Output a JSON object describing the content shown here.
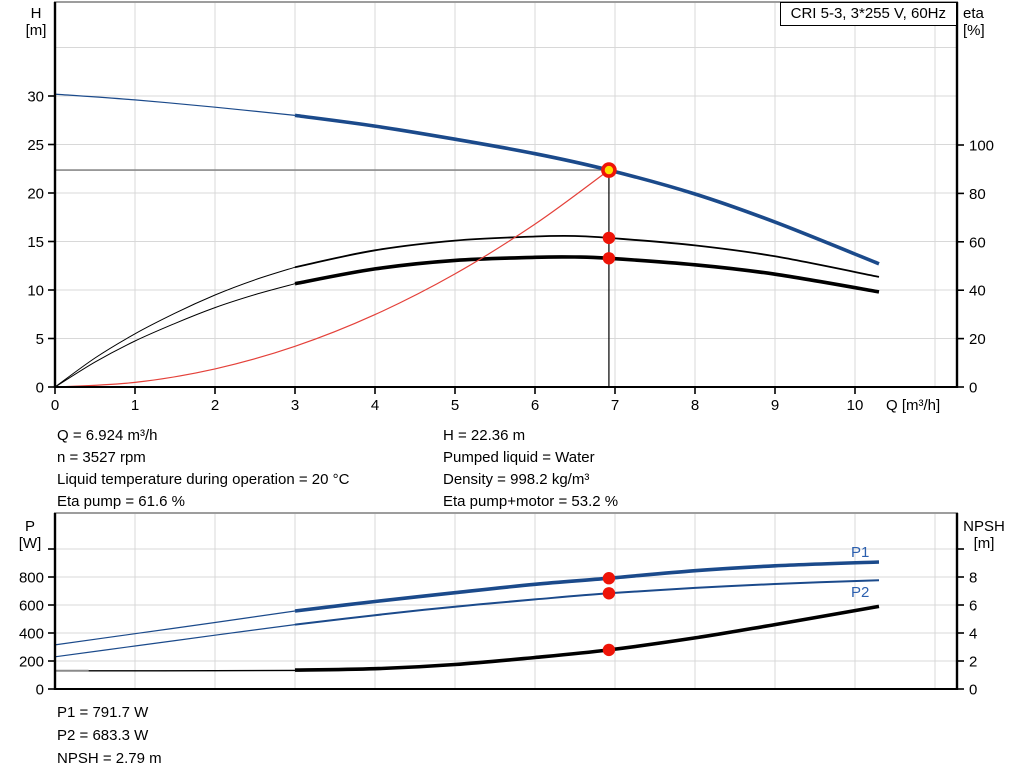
{
  "title_box": "CRI 5-3, 3*255 V, 60Hz",
  "annotations": {
    "top_left": [
      "Q = 6.924 m³/h",
      "n = 3527 rpm",
      "Liquid temperature during operation = 20 °C",
      "Eta pump = 61.6 %"
    ],
    "top_right": [
      "H = 22.36 m",
      "Pumped liquid = Water",
      "Density = 998.2 kg/m³",
      "Eta pump+motor = 53.2 %"
    ],
    "bottom": [
      "P1 = 791.7 W",
      "P2 = 683.3 W",
      "NPSH = 2.79 m"
    ]
  },
  "colors": {
    "curve_blue": "#1b4a8b",
    "label_blue": "#2b5fae",
    "red_curve": "#e4413a",
    "red_dot": "#ee1408",
    "duty_yellow": "#ffdf00",
    "grid": "#d8d8d8",
    "border_gray": "#9d9d9d",
    "duty_guide_gray": "#8a8a8a",
    "black": "#000000"
  },
  "chart_data": [
    {
      "type": "line",
      "title": "CRI 5-3, 3*255 V, 60Hz",
      "x_axis": {
        "label": "Q [m³/h]",
        "ticks": [
          0,
          1,
          2,
          3,
          4,
          5,
          6,
          7,
          8,
          9,
          10
        ],
        "range": [
          0,
          11.28
        ],
        "grid": true
      },
      "y_left": {
        "label": [
          "H",
          "[m]"
        ],
        "ticks": [
          0,
          5,
          10,
          15,
          20,
          25,
          30
        ],
        "range": [
          0,
          39.7
        ]
      },
      "y_right": {
        "label": [
          "eta",
          "[%]"
        ],
        "ticks": [
          0,
          20,
          40,
          60,
          80,
          100
        ],
        "range": [
          0,
          159
        ]
      },
      "series": [
        {
          "name": "head-curve-extension",
          "axis": "left",
          "color": "blue",
          "width": 1.2,
          "points": [
            [
              0,
              30.2
            ],
            [
              1,
              29.6
            ],
            [
              2,
              28.85
            ],
            [
              3,
              28.0
            ]
          ]
        },
        {
          "name": "head-curve",
          "axis": "left",
          "color": "blue",
          "width": 3.6,
          "points": [
            [
              3,
              28.0
            ],
            [
              4,
              26.9
            ],
            [
              5,
              25.55
            ],
            [
              6,
              24.05
            ],
            [
              6.924,
              22.36
            ],
            [
              8,
              19.9
            ],
            [
              9,
              17.0
            ],
            [
              10.3,
              12.7
            ]
          ]
        },
        {
          "name": "eta-pump-curve-extension",
          "axis": "right",
          "color": "black",
          "width": 1,
          "points": [
            [
              0,
              0
            ],
            [
              0.5,
              12
            ],
            [
              1,
              22
            ],
            [
              1.5,
              30.5
            ],
            [
              2,
              38
            ],
            [
              2.5,
              44.3
            ],
            [
              3,
              49.5
            ]
          ]
        },
        {
          "name": "eta-pump-curve",
          "axis": "right",
          "color": "black",
          "width": 1.8,
          "points": [
            [
              3,
              49.5
            ],
            [
              4,
              56.5
            ],
            [
              5,
              60.5
            ],
            [
              6,
              62.2
            ],
            [
              6.5,
              62.4
            ],
            [
              6.924,
              61.6
            ],
            [
              8,
              58.5
            ],
            [
              9,
              54.0
            ],
            [
              10.3,
              45.5
            ]
          ]
        },
        {
          "name": "eta-pump-motor-curve-extension",
          "axis": "right",
          "color": "black",
          "width": 1,
          "points": [
            [
              0,
              0
            ],
            [
              0.5,
              10.3
            ],
            [
              1,
              19
            ],
            [
              1.5,
              26.3
            ],
            [
              2,
              32.8
            ],
            [
              2.5,
              38.2
            ],
            [
              3,
              42.7
            ]
          ]
        },
        {
          "name": "eta-pump-motor-curve",
          "axis": "right",
          "color": "black",
          "width": 3.6,
          "points": [
            [
              3,
              42.7
            ],
            [
              4,
              48.8
            ],
            [
              5,
              52.3
            ],
            [
              6,
              53.6
            ],
            [
              6.5,
              53.7
            ],
            [
              6.924,
              53.2
            ],
            [
              8,
              50.5
            ],
            [
              9,
              46.6
            ],
            [
              10.3,
              39.3
            ]
          ]
        },
        {
          "name": "system-curve",
          "axis": "left",
          "color": "red",
          "width": 1.2,
          "points": [
            [
              0,
              0
            ],
            [
              1,
              0.47
            ],
            [
              2,
              1.87
            ],
            [
              3,
              4.2
            ],
            [
              4,
              7.46
            ],
            [
              5,
              11.66
            ],
            [
              6,
              16.79
            ],
            [
              6.924,
              22.36
            ]
          ]
        }
      ],
      "duty_point": {
        "q": 6.924,
        "h": 22.36,
        "eta_pump": 61.6,
        "eta_pump_motor": 53.2
      },
      "guides": {
        "h_line": {
          "h": 22.36,
          "q_from": 0,
          "q_to": 6.924
        },
        "v_line": {
          "q": 6.924,
          "v_from": 0,
          "v_to": 22.36
        }
      },
      "markers": [
        {
          "name": "duty-point-marker",
          "axis": "left",
          "q": 6.924,
          "v": 22.36,
          "style": "ring"
        },
        {
          "name": "eta-pump-marker",
          "axis": "right",
          "q": 6.924,
          "v": 61.6,
          "style": "dot"
        },
        {
          "name": "eta-pump-motor-marker",
          "axis": "right",
          "q": 6.924,
          "v": 53.2,
          "style": "dot"
        }
      ]
    },
    {
      "type": "line",
      "title": "",
      "x_axis": {
        "label": "",
        "ticks": [],
        "range": [
          0,
          11.28
        ],
        "grid": true
      },
      "y_left": {
        "label": [
          "P",
          "[W]"
        ],
        "ticks": [
          0,
          200,
          400,
          600,
          800
        ],
        "range": [
          0,
          1257
        ]
      },
      "y_right": {
        "label": [
          "NPSH",
          "[m]"
        ],
        "ticks": [
          0,
          2,
          4,
          6,
          8
        ],
        "range": [
          0,
          12.6
        ]
      },
      "series": [
        {
          "name": "p1-curve-extension",
          "axis": "left",
          "color": "blue",
          "width": 1.2,
          "points": [
            [
              0,
              315
            ],
            [
              1,
              395
            ],
            [
              2,
              475
            ],
            [
              3,
              557
            ]
          ]
        },
        {
          "name": "p1-curve",
          "axis": "left",
          "color": "blue",
          "width": 3.6,
          "points": [
            [
              3,
              557
            ],
            [
              4,
              625
            ],
            [
              5,
              688
            ],
            [
              6,
              748
            ],
            [
              6.924,
              791.7
            ],
            [
              8,
              845
            ],
            [
              9,
              880
            ],
            [
              10.3,
              907
            ]
          ]
        },
        {
          "name": "p2-curve-extension",
          "axis": "left",
          "color": "blue",
          "width": 1.2,
          "points": [
            [
              0,
              230
            ],
            [
              1,
              307
            ],
            [
              2,
              384
            ],
            [
              3,
              460
            ]
          ]
        },
        {
          "name": "p2-curve",
          "axis": "left",
          "color": "blue",
          "width": 2,
          "points": [
            [
              3,
              460
            ],
            [
              4,
              527
            ],
            [
              5,
              588
            ],
            [
              6,
              640
            ],
            [
              6.924,
              683.3
            ],
            [
              8,
              722
            ],
            [
              9,
              750
            ],
            [
              10.3,
              777
            ]
          ]
        },
        {
          "name": "npsh-curve-start",
          "axis": "right",
          "color": "gray",
          "width": 2,
          "points": [
            [
              0,
              1.3
            ],
            [
              0.42,
              1.3
            ]
          ]
        },
        {
          "name": "npsh-curve-extension",
          "axis": "right",
          "color": "black",
          "width": 1.4,
          "points": [
            [
              0.42,
              1.3
            ],
            [
              2,
              1.31
            ],
            [
              3,
              1.33
            ]
          ]
        },
        {
          "name": "npsh-curve",
          "axis": "right",
          "color": "black",
          "width": 3.6,
          "points": [
            [
              3,
              1.35
            ],
            [
              4,
              1.45
            ],
            [
              5,
              1.75
            ],
            [
              6,
              2.25
            ],
            [
              6.924,
              2.79
            ],
            [
              8,
              3.65
            ],
            [
              9,
              4.6
            ],
            [
              10.3,
              5.9
            ]
          ]
        }
      ],
      "duty_point": {
        "q": 6.924,
        "p1": 791.7,
        "p2": 683.3,
        "npsh": 2.79
      },
      "markers": [
        {
          "name": "p1-marker",
          "axis": "left",
          "q": 6.924,
          "v": 791.7,
          "style": "dot"
        },
        {
          "name": "p2-marker",
          "axis": "left",
          "q": 6.924,
          "v": 683.3,
          "style": "dot"
        },
        {
          "name": "npsh-marker",
          "axis": "right",
          "q": 6.924,
          "v": 2.79,
          "style": "dot"
        }
      ],
      "curve_labels": [
        {
          "text": "P1"
        },
        {
          "text": "P2"
        }
      ]
    }
  ]
}
